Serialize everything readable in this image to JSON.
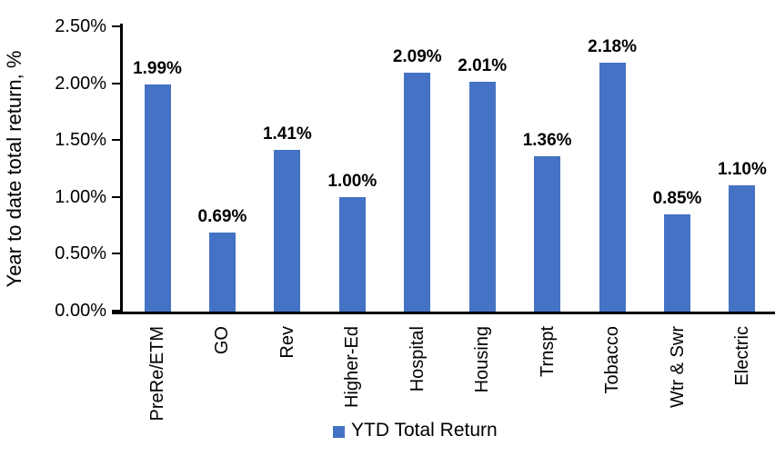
{
  "chart_data": {
    "type": "bar",
    "title": "",
    "ylabel": "Year to date total return, %",
    "xlabel": "",
    "categories": [
      "PreRe/ETM",
      "GO",
      "Rev",
      "Higher-Ed",
      "Hospital",
      "Housing",
      "Trnspt",
      "Tobacco",
      "Wtr & Swr",
      "Electric"
    ],
    "values": [
      1.99,
      0.69,
      1.41,
      1.0,
      2.09,
      2.01,
      1.36,
      2.18,
      0.85,
      1.1
    ],
    "data_labels": [
      "1.99%",
      "0.69%",
      "1.41%",
      "1.00%",
      "2.09%",
      "2.01%",
      "1.36%",
      "2.18%",
      "0.85%",
      "1.10%"
    ],
    "yticks": [
      "0.00%",
      "0.50%",
      "1.00%",
      "1.50%",
      "2.00%",
      "2.50%"
    ],
    "ylim": [
      0,
      2.5
    ],
    "grid": false,
    "legend": "YTD Total Return",
    "legend_position": "bottom",
    "bar_color": "#4472C4"
  }
}
